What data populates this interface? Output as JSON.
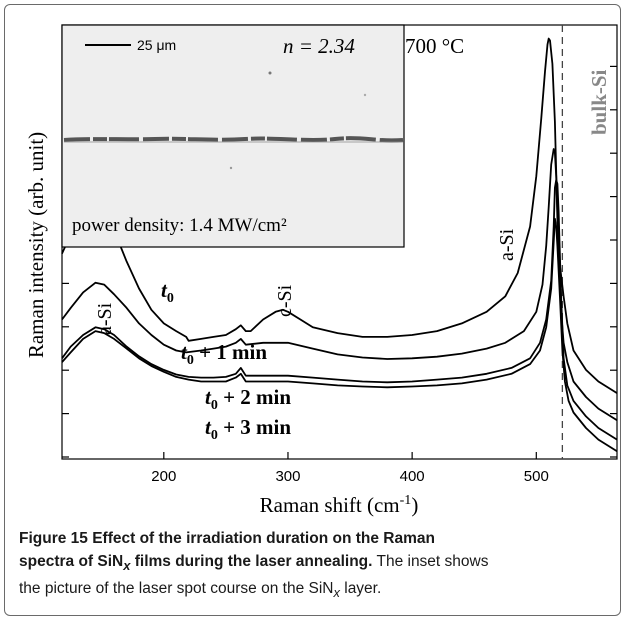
{
  "chart_data": {
    "type": "line",
    "xlabel": "Raman shift (cm",
    "xlabel_sup": "-1",
    "xlabel_tail": ")",
    "ylabel": "Raman intensity (arb. unit)",
    "xlim": [
      118,
      565
    ],
    "x_ticks": [
      200,
      300,
      400,
      500
    ],
    "y_ticks_count": 10,
    "reference_line": {
      "x": 521,
      "label": "bulk-Si"
    },
    "annotations": {
      "a_si_left": "a-Si",
      "c_si": "c-Si",
      "a_si_right": "a-Si",
      "n_value": "n = 2.34",
      "temperature": "700 °C"
    },
    "series": [
      {
        "name": "t0",
        "label_main": "t",
        "label_sub": "0",
        "label_rest": "",
        "points": [
          [
            118,
            0.53
          ],
          [
            125,
            0.58
          ],
          [
            135,
            0.64
          ],
          [
            145,
            0.66
          ],
          [
            152,
            0.64
          ],
          [
            160,
            0.59
          ],
          [
            170,
            0.51
          ],
          [
            180,
            0.44
          ],
          [
            190,
            0.385
          ],
          [
            200,
            0.35
          ],
          [
            210,
            0.33
          ],
          [
            218,
            0.315
          ],
          [
            220,
            0.305
          ],
          [
            230,
            0.31
          ],
          [
            240,
            0.315
          ],
          [
            250,
            0.32
          ],
          [
            258,
            0.335
          ],
          [
            262,
            0.345
          ],
          [
            266,
            0.33
          ],
          [
            270,
            0.33
          ],
          [
            280,
            0.36
          ],
          [
            290,
            0.38
          ],
          [
            296,
            0.385
          ],
          [
            300,
            0.38
          ],
          [
            310,
            0.36
          ],
          [
            320,
            0.34
          ],
          [
            340,
            0.325
          ],
          [
            360,
            0.315
          ],
          [
            380,
            0.315
          ],
          [
            400,
            0.32
          ],
          [
            420,
            0.33
          ],
          [
            440,
            0.35
          ],
          [
            460,
            0.38
          ],
          [
            475,
            0.42
          ],
          [
            485,
            0.48
          ],
          [
            495,
            0.6
          ],
          [
            500,
            0.73
          ],
          [
            504,
            0.88
          ],
          [
            507,
            1.0
          ],
          [
            509,
            1.07
          ],
          [
            510,
            1.085
          ],
          [
            511,
            1.08
          ],
          [
            513,
            1.02
          ],
          [
            515,
            0.87
          ],
          [
            517,
            0.62
          ],
          [
            519,
            0.5
          ],
          [
            522,
            0.42
          ],
          [
            525,
            0.35
          ],
          [
            530,
            0.28
          ],
          [
            540,
            0.23
          ],
          [
            550,
            0.2
          ],
          [
            565,
            0.17
          ]
        ]
      },
      {
        "name": "t0 + 1 min",
        "label_main": "t",
        "label_sub": "0",
        "label_rest": " + 1 min",
        "points": [
          [
            118,
            0.36
          ],
          [
            125,
            0.39
          ],
          [
            135,
            0.43
          ],
          [
            145,
            0.455
          ],
          [
            152,
            0.45
          ],
          [
            160,
            0.425
          ],
          [
            170,
            0.39
          ],
          [
            180,
            0.35
          ],
          [
            190,
            0.32
          ],
          [
            200,
            0.295
          ],
          [
            210,
            0.28
          ],
          [
            218,
            0.275
          ],
          [
            230,
            0.28
          ],
          [
            240,
            0.285
          ],
          [
            250,
            0.29
          ],
          [
            258,
            0.3
          ],
          [
            262,
            0.31
          ],
          [
            266,
            0.295
          ],
          [
            280,
            0.3
          ],
          [
            300,
            0.3
          ],
          [
            320,
            0.285
          ],
          [
            340,
            0.27
          ],
          [
            360,
            0.262
          ],
          [
            380,
            0.258
          ],
          [
            400,
            0.26
          ],
          [
            420,
            0.264
          ],
          [
            440,
            0.272
          ],
          [
            460,
            0.285
          ],
          [
            475,
            0.3
          ],
          [
            490,
            0.33
          ],
          [
            500,
            0.38
          ],
          [
            505,
            0.45
          ],
          [
            508,
            0.55
          ],
          [
            510,
            0.65
          ],
          [
            512,
            0.76
          ],
          [
            514,
            0.8
          ],
          [
            515,
            0.79
          ],
          [
            516,
            0.73
          ],
          [
            518,
            0.55
          ],
          [
            520,
            0.38
          ],
          [
            522,
            0.3
          ],
          [
            525,
            0.25
          ],
          [
            530,
            0.2
          ],
          [
            540,
            0.16
          ],
          [
            550,
            0.13
          ],
          [
            565,
            0.1
          ]
        ]
      },
      {
        "name": "t0 + 2 min",
        "label_main": "t",
        "label_sub": "0",
        "label_rest": " + 2 min",
        "points": [
          [
            118,
            0.26
          ],
          [
            125,
            0.29
          ],
          [
            135,
            0.32
          ],
          [
            145,
            0.34
          ],
          [
            152,
            0.335
          ],
          [
            160,
            0.32
          ],
          [
            170,
            0.29
          ],
          [
            180,
            0.265
          ],
          [
            190,
            0.245
          ],
          [
            200,
            0.23
          ],
          [
            210,
            0.218
          ],
          [
            220,
            0.212
          ],
          [
            230,
            0.21
          ],
          [
            240,
            0.21
          ],
          [
            250,
            0.212
          ],
          [
            258,
            0.22
          ],
          [
            262,
            0.235
          ],
          [
            266,
            0.215
          ],
          [
            280,
            0.215
          ],
          [
            300,
            0.215
          ],
          [
            320,
            0.21
          ],
          [
            340,
            0.205
          ],
          [
            360,
            0.2
          ],
          [
            380,
            0.198
          ],
          [
            400,
            0.2
          ],
          [
            420,
            0.205
          ],
          [
            440,
            0.21
          ],
          [
            460,
            0.22
          ],
          [
            480,
            0.235
          ],
          [
            495,
            0.26
          ],
          [
            503,
            0.3
          ],
          [
            508,
            0.36
          ],
          [
            512,
            0.46
          ],
          [
            514,
            0.6
          ],
          [
            515,
            0.7
          ],
          [
            516,
            0.72
          ],
          [
            517,
            0.71
          ],
          [
            518,
            0.64
          ],
          [
            520,
            0.42
          ],
          [
            522,
            0.26
          ],
          [
            525,
            0.19
          ],
          [
            530,
            0.15
          ],
          [
            540,
            0.11
          ],
          [
            550,
            0.08
          ],
          [
            565,
            0.05
          ]
        ]
      },
      {
        "name": "t0 + 3 min",
        "label_main": "t",
        "label_sub": "0",
        "label_rest": " + 3 min",
        "points": [
          [
            118,
            0.25
          ],
          [
            125,
            0.275
          ],
          [
            135,
            0.31
          ],
          [
            145,
            0.33
          ],
          [
            152,
            0.325
          ],
          [
            160,
            0.31
          ],
          [
            170,
            0.285
          ],
          [
            180,
            0.26
          ],
          [
            190,
            0.24
          ],
          [
            200,
            0.225
          ],
          [
            210,
            0.212
          ],
          [
            220,
            0.205
          ],
          [
            230,
            0.2
          ],
          [
            240,
            0.2
          ],
          [
            250,
            0.2
          ],
          [
            258,
            0.21
          ],
          [
            262,
            0.22
          ],
          [
            266,
            0.2
          ],
          [
            280,
            0.2
          ],
          [
            300,
            0.2
          ],
          [
            320,
            0.195
          ],
          [
            340,
            0.19
          ],
          [
            360,
            0.187
          ],
          [
            380,
            0.185
          ],
          [
            400,
            0.187
          ],
          [
            420,
            0.19
          ],
          [
            440,
            0.195
          ],
          [
            460,
            0.205
          ],
          [
            480,
            0.22
          ],
          [
            495,
            0.245
          ],
          [
            503,
            0.28
          ],
          [
            508,
            0.34
          ],
          [
            512,
            0.44
          ],
          [
            514,
            0.56
          ],
          [
            515,
            0.62
          ],
          [
            516,
            0.6
          ],
          [
            517,
            0.55
          ],
          [
            519,
            0.42
          ],
          [
            521,
            0.28
          ],
          [
            523,
            0.2
          ],
          [
            526,
            0.15
          ],
          [
            530,
            0.12
          ],
          [
            540,
            0.08
          ],
          [
            550,
            0.05
          ],
          [
            565,
            0.02
          ]
        ]
      }
    ],
    "inset": {
      "scale_bar_label": "25 μm",
      "power_density_label": "power density: 1.4 MW/cm²"
    }
  },
  "caption": {
    "figure_title_1": "Figure 15 Effect of the irradiation duration on the Raman",
    "figure_title_2_pre": "spectra of SiN",
    "figure_title_2_sub": "x",
    "figure_title_2_post": " films during the laser annealing.",
    "text_1": " The inset shows",
    "text_2_pre": "the picture of the laser spot course on the SiN",
    "text_2_sub": "x",
    "text_2_post": " layer."
  }
}
